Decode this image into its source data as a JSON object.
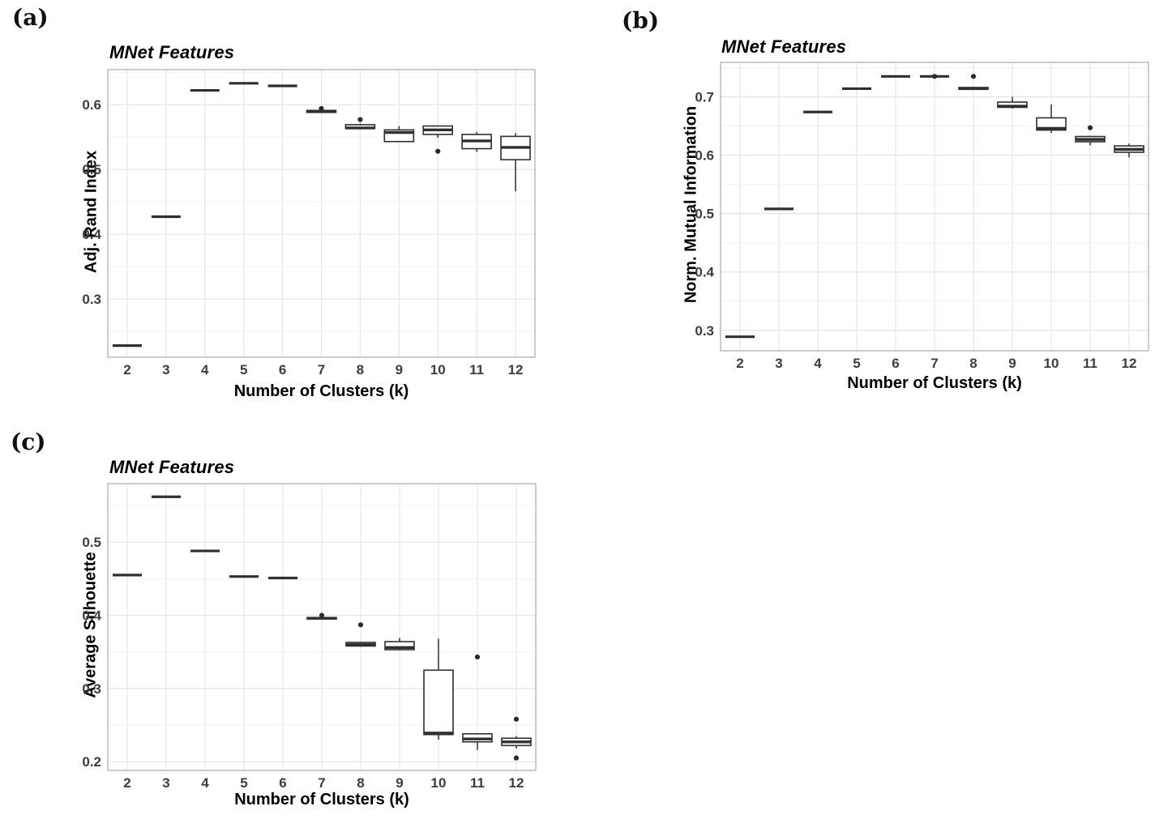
{
  "figure": {
    "panels": [
      {
        "tag": "(a)"
      },
      {
        "tag": "(b)"
      },
      {
        "tag": "(c)"
      }
    ]
  },
  "style": {
    "box_stroke": "#2f2f2f",
    "outlier_fill": "#2b2b2b",
    "grid_major": "#e4e4e4",
    "grid_minor": "#f2f2f2",
    "panel_border": "#a9a9a9",
    "tick_label_color": "#3d3d3d",
    "background": "#ffffff"
  },
  "chart_data": [
    {
      "type": "boxplot",
      "title": "MNet Features",
      "xlabel": "Number of Clusters (k)",
      "ylabel": "Adj. Rand Index",
      "categories": [
        "2",
        "3",
        "4",
        "5",
        "6",
        "7",
        "8",
        "9",
        "10",
        "11",
        "12"
      ],
      "y_ticks": [
        0.3,
        0.4,
        0.5,
        0.6
      ],
      "ylim": [
        0.21,
        0.654
      ],
      "grid": true,
      "legend": "none",
      "boxes": [
        {
          "k": "2",
          "low": 0.228,
          "q1": 0.228,
          "median": 0.228,
          "q3": 0.228,
          "high": 0.228,
          "outliers": []
        },
        {
          "k": "3",
          "low": 0.427,
          "q1": 0.427,
          "median": 0.427,
          "q3": 0.427,
          "high": 0.427,
          "outliers": []
        },
        {
          "k": "4",
          "low": 0.622,
          "q1": 0.622,
          "median": 0.622,
          "q3": 0.622,
          "high": 0.622,
          "outliers": []
        },
        {
          "k": "5",
          "low": 0.633,
          "q1": 0.633,
          "median": 0.633,
          "q3": 0.633,
          "high": 0.633,
          "outliers": []
        },
        {
          "k": "6",
          "low": 0.629,
          "q1": 0.629,
          "median": 0.629,
          "q3": 0.629,
          "high": 0.629,
          "outliers": []
        },
        {
          "k": "7",
          "low": 0.587,
          "q1": 0.588,
          "median": 0.59,
          "q3": 0.591,
          "high": 0.592,
          "outliers": [
            0.594
          ]
        },
        {
          "k": "8",
          "low": 0.562,
          "q1": 0.563,
          "median": 0.564,
          "q3": 0.569,
          "high": 0.571,
          "outliers": [
            0.577
          ]
        },
        {
          "k": "9",
          "low": 0.542,
          "q1": 0.543,
          "median": 0.557,
          "q3": 0.561,
          "high": 0.567,
          "outliers": []
        },
        {
          "k": "10",
          "low": 0.549,
          "q1": 0.554,
          "median": 0.561,
          "q3": 0.567,
          "high": 0.568,
          "outliers": [
            0.528
          ]
        },
        {
          "k": "11",
          "low": 0.527,
          "q1": 0.532,
          "median": 0.544,
          "q3": 0.554,
          "high": 0.558,
          "outliers": []
        },
        {
          "k": "12",
          "low": 0.466,
          "q1": 0.515,
          "median": 0.534,
          "q3": 0.551,
          "high": 0.556,
          "outliers": []
        }
      ]
    },
    {
      "type": "boxplot",
      "title": "MNet Features",
      "xlabel": "Number of Clusters (k)",
      "ylabel": "Norm. Mutual Information",
      "categories": [
        "2",
        "3",
        "4",
        "5",
        "6",
        "7",
        "8",
        "9",
        "10",
        "11",
        "12"
      ],
      "y_ticks": [
        0.3,
        0.4,
        0.5,
        0.6,
        0.7
      ],
      "ylim": [
        0.265,
        0.759
      ],
      "grid": true,
      "legend": "none",
      "boxes": [
        {
          "k": "2",
          "low": 0.289,
          "q1": 0.289,
          "median": 0.289,
          "q3": 0.289,
          "high": 0.289,
          "outliers": []
        },
        {
          "k": "3",
          "low": 0.508,
          "q1": 0.508,
          "median": 0.508,
          "q3": 0.508,
          "high": 0.508,
          "outliers": []
        },
        {
          "k": "4",
          "low": 0.674,
          "q1": 0.674,
          "median": 0.674,
          "q3": 0.674,
          "high": 0.674,
          "outliers": []
        },
        {
          "k": "5",
          "low": 0.714,
          "q1": 0.714,
          "median": 0.714,
          "q3": 0.714,
          "high": 0.714,
          "outliers": []
        },
        {
          "k": "6",
          "low": 0.735,
          "q1": 0.735,
          "median": 0.735,
          "q3": 0.735,
          "high": 0.735,
          "outliers": []
        },
        {
          "k": "7",
          "low": 0.735,
          "q1": 0.735,
          "median": 0.735,
          "q3": 0.735,
          "high": 0.735,
          "outliers": [
            0.735
          ]
        },
        {
          "k": "8",
          "low": 0.712,
          "q1": 0.713,
          "median": 0.714,
          "q3": 0.716,
          "high": 0.717,
          "outliers": [
            0.735
          ]
        },
        {
          "k": "9",
          "low": 0.68,
          "q1": 0.682,
          "median": 0.684,
          "q3": 0.691,
          "high": 0.7,
          "outliers": []
        },
        {
          "k": "10",
          "low": 0.638,
          "q1": 0.643,
          "median": 0.646,
          "q3": 0.664,
          "high": 0.687,
          "outliers": []
        },
        {
          "k": "11",
          "low": 0.617,
          "q1": 0.623,
          "median": 0.627,
          "q3": 0.632,
          "high": 0.633,
          "outliers": [
            0.647
          ]
        },
        {
          "k": "12",
          "low": 0.596,
          "q1": 0.605,
          "median": 0.61,
          "q3": 0.616,
          "high": 0.62,
          "outliers": []
        }
      ]
    },
    {
      "type": "boxplot",
      "title": "MNet Features",
      "xlabel": "Number of Clusters (k)",
      "ylabel": "Average Silhouette",
      "categories": [
        "2",
        "3",
        "4",
        "5",
        "6",
        "7",
        "8",
        "9",
        "10",
        "11",
        "12"
      ],
      "y_ticks": [
        0.2,
        0.3,
        0.4,
        0.5
      ],
      "ylim": [
        0.188,
        0.58
      ],
      "grid": true,
      "legend": "none",
      "boxes": [
        {
          "k": "2",
          "low": 0.455,
          "q1": 0.455,
          "median": 0.455,
          "q3": 0.455,
          "high": 0.455,
          "outliers": []
        },
        {
          "k": "3",
          "low": 0.562,
          "q1": 0.562,
          "median": 0.562,
          "q3": 0.562,
          "high": 0.562,
          "outliers": []
        },
        {
          "k": "4",
          "low": 0.488,
          "q1": 0.488,
          "median": 0.488,
          "q3": 0.488,
          "high": 0.488,
          "outliers": []
        },
        {
          "k": "5",
          "low": 0.453,
          "q1": 0.453,
          "median": 0.453,
          "q3": 0.453,
          "high": 0.453,
          "outliers": []
        },
        {
          "k": "6",
          "low": 0.451,
          "q1": 0.451,
          "median": 0.451,
          "q3": 0.451,
          "high": 0.451,
          "outliers": []
        },
        {
          "k": "7",
          "low": 0.394,
          "q1": 0.395,
          "median": 0.396,
          "q3": 0.397,
          "high": 0.398,
          "outliers": [
            0.4
          ]
        },
        {
          "k": "8",
          "low": 0.357,
          "q1": 0.358,
          "median": 0.36,
          "q3": 0.363,
          "high": 0.364,
          "outliers": [
            0.387
          ]
        },
        {
          "k": "9",
          "low": 0.352,
          "q1": 0.353,
          "median": 0.356,
          "q3": 0.364,
          "high": 0.369,
          "outliers": []
        },
        {
          "k": "10",
          "low": 0.23,
          "q1": 0.237,
          "median": 0.239,
          "q3": 0.325,
          "high": 0.368,
          "outliers": []
        },
        {
          "k": "11",
          "low": 0.216,
          "q1": 0.227,
          "median": 0.231,
          "q3": 0.238,
          "high": 0.239,
          "outliers": [
            0.343
          ]
        },
        {
          "k": "12",
          "low": 0.218,
          "q1": 0.222,
          "median": 0.227,
          "q3": 0.232,
          "high": 0.235,
          "outliers": [
            0.258,
            0.205
          ]
        }
      ]
    }
  ]
}
